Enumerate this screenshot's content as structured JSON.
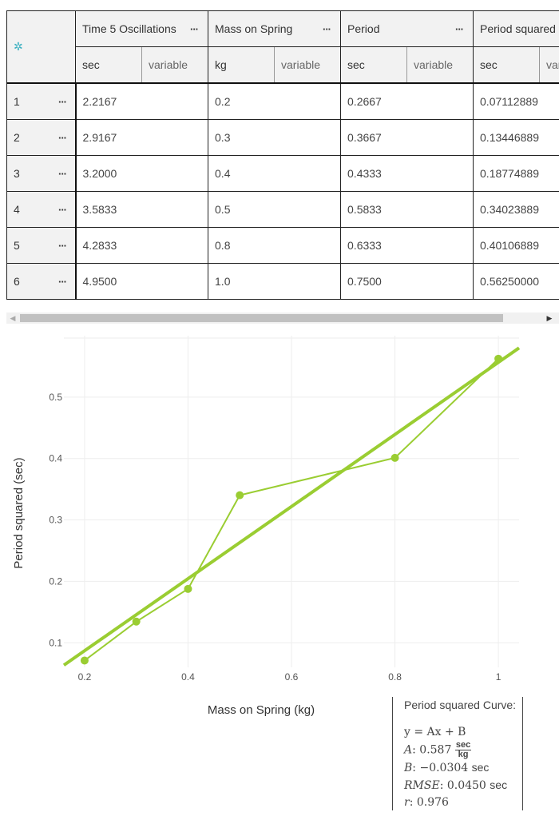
{
  "table": {
    "settings_icon": "gear-icon",
    "columns": [
      {
        "title": "Time 5 Oscillations",
        "unit": "sec",
        "variable": "variable"
      },
      {
        "title": "Mass on Spring",
        "unit": "kg",
        "variable": "variable"
      },
      {
        "title": "Period",
        "unit": "sec",
        "variable": "variable"
      },
      {
        "title": "Period squared",
        "unit": "sec",
        "variable": "variable"
      }
    ],
    "rows": [
      {
        "index": "1",
        "cells": [
          "2.2167",
          "0.2",
          "0.2667",
          "0.07112889"
        ]
      },
      {
        "index": "2",
        "cells": [
          "2.9167",
          "0.3",
          "0.3667",
          "0.13446889"
        ]
      },
      {
        "index": "3",
        "cells": [
          "3.2000",
          "0.4",
          "0.4333",
          "0.18774889"
        ]
      },
      {
        "index": "4",
        "cells": [
          "3.5833",
          "0.5",
          "0.5833",
          "0.34023889"
        ]
      },
      {
        "index": "5",
        "cells": [
          "4.2833",
          "0.8",
          "0.6333",
          "0.40106889"
        ]
      },
      {
        "index": "6",
        "cells": [
          "4.9500",
          "1.0",
          "0.7500",
          "0.56250000"
        ]
      }
    ],
    "menu_glyph": "···"
  },
  "chart_data": {
    "type": "scatter",
    "xlabel": "Mass on Spring (kg)",
    "ylabel": "Period squared (sec)",
    "x": [
      0.2,
      0.3,
      0.4,
      0.5,
      0.8,
      1.0
    ],
    "series": [
      {
        "values": [
          0.07112889,
          0.13446889,
          0.18774889,
          0.34023889,
          0.40106889,
          0.5625
        ],
        "color": "#9acd32"
      }
    ],
    "fit": {
      "A": 0.587,
      "B": -0.0304
    },
    "xlim": [
      0.16,
      1.04
    ],
    "ylim": [
      0.06,
      0.6
    ],
    "x_ticks": [
      "0.2",
      "0.4",
      "0.6",
      "0.8",
      "1"
    ],
    "x_tick_values": [
      0.2,
      0.4,
      0.6,
      0.8,
      1.0
    ],
    "y_ticks": [
      "0.1",
      "0.2",
      "0.3",
      "0.4",
      "0.5"
    ],
    "y_tick_values": [
      0.1,
      0.2,
      0.3,
      0.4,
      0.5
    ],
    "grid": true
  },
  "fit_box": {
    "title": "Period squared Curve:",
    "equation": "y = Ax + B",
    "A_label": "A",
    "A_value": ": 0.587",
    "A_unit_num": "sec",
    "A_unit_den": "kg",
    "B_label": "B",
    "B_value": ": −0.0304",
    "B_unit": "sec",
    "rmse_label": "RMSE",
    "rmse_value": ": 0.0450",
    "rmse_unit": "sec",
    "r_label": "r",
    "r_value": ": 0.976"
  }
}
